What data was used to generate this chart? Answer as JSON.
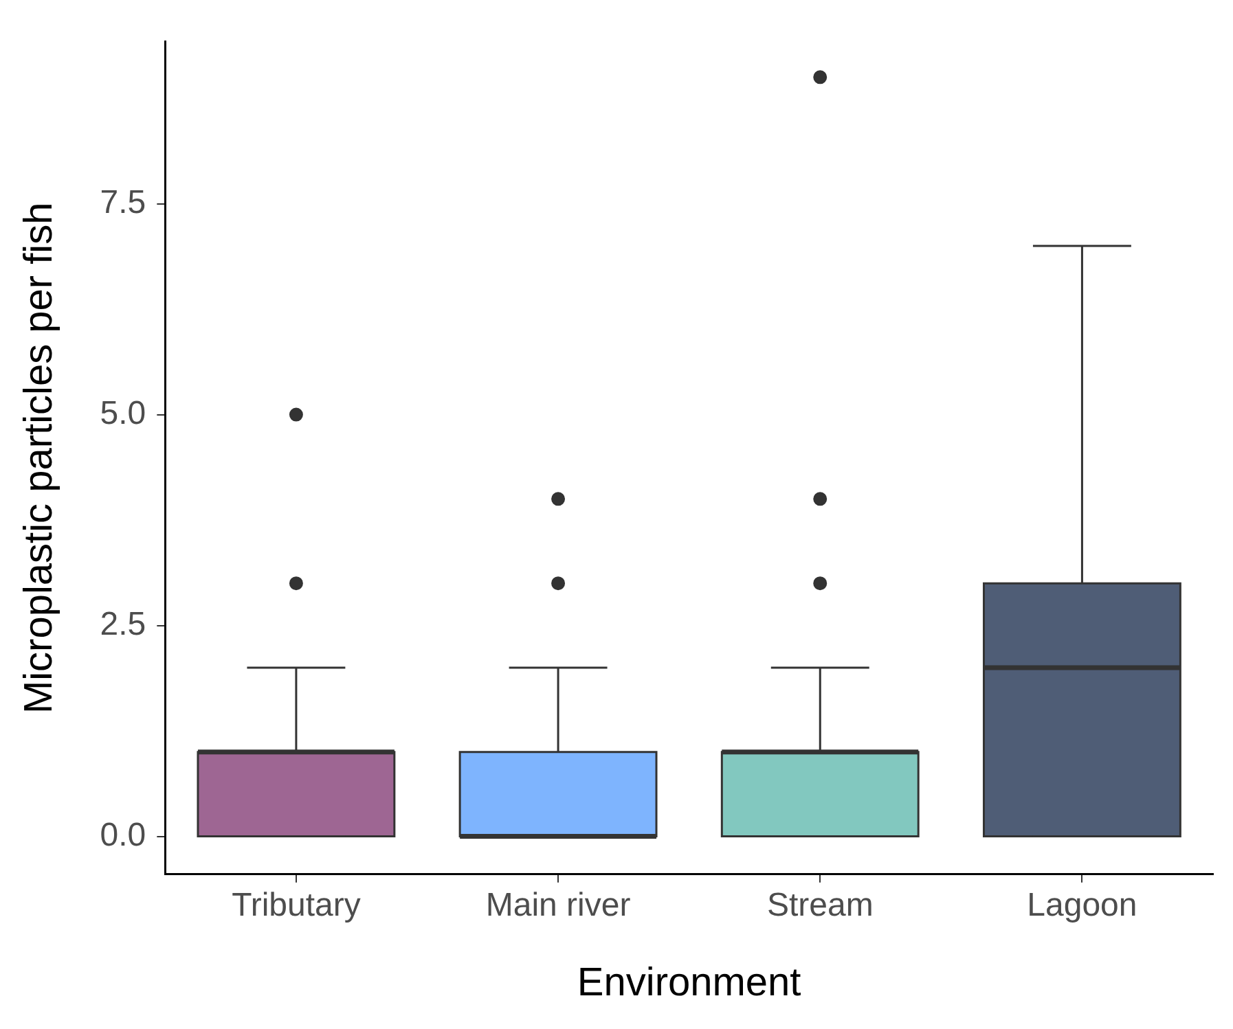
{
  "chart_data": {
    "type": "box",
    "xlabel": "Environment",
    "ylabel": "Microplastic particles per fish",
    "categories": [
      "Tributary",
      "Main river",
      "Stream",
      "Lagoon"
    ],
    "colors": [
      "#9e6693",
      "#7eb4fe",
      "#82c8bf",
      "#4f5d76"
    ],
    "boxes": [
      {
        "low": 0,
        "q1": 0,
        "median": 1,
        "q3": 1,
        "high": 2,
        "outliers": [
          3,
          5
        ]
      },
      {
        "low": 0,
        "q1": 0,
        "median": 0,
        "q3": 1,
        "high": 2,
        "outliers": [
          3,
          4
        ]
      },
      {
        "low": 0,
        "q1": 0,
        "median": 1,
        "q3": 1,
        "high": 2,
        "outliers": [
          3,
          4,
          9
        ]
      },
      {
        "low": 0,
        "q1": 0,
        "median": 2,
        "q3": 3,
        "high": 7
      }
    ],
    "ylim": [
      -0.45,
      9.42
    ],
    "yticks": [
      {
        "value": 0,
        "label": "0.0"
      },
      {
        "value": 2.5,
        "label": "2.5"
      },
      {
        "value": 5,
        "label": "5.0"
      },
      {
        "value": 7.5,
        "label": "7.5"
      }
    ],
    "grid": false,
    "legend": false
  }
}
